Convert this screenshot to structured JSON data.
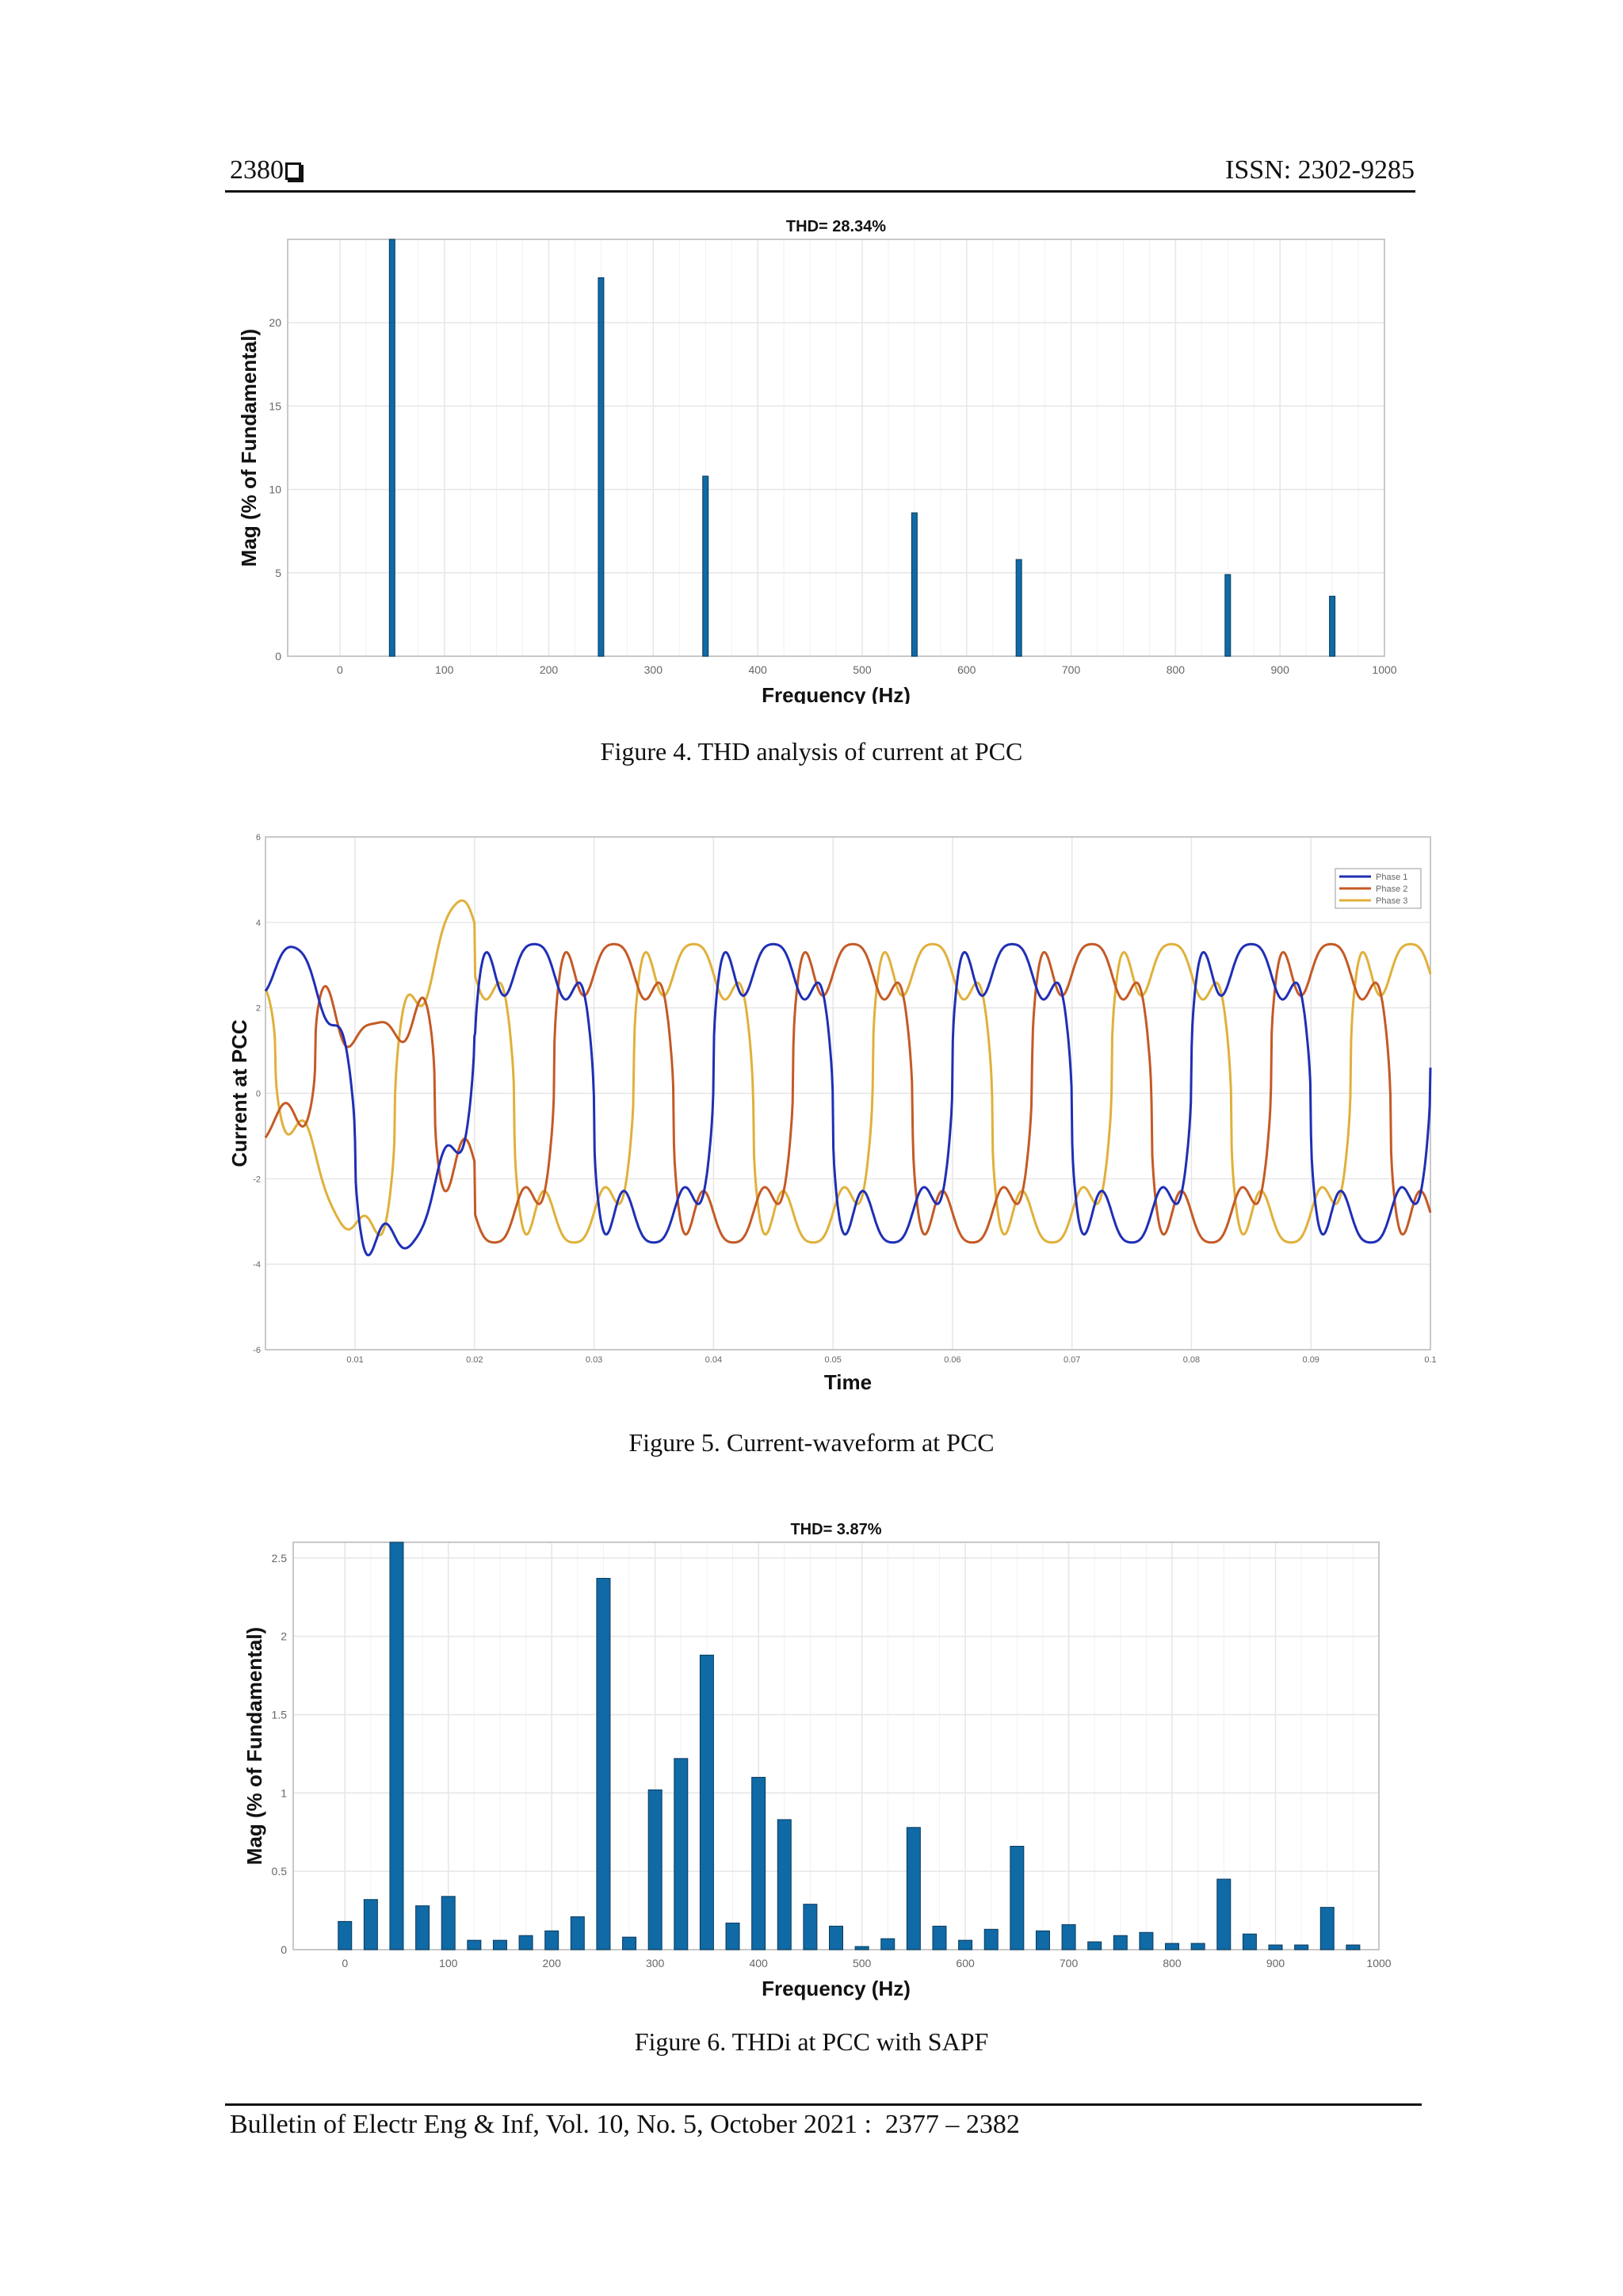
{
  "header": {
    "page_number": "2380",
    "issn": "ISSN: 2302-9285"
  },
  "footer": {
    "citation": "Bulletin of Electr Eng & Inf, Vol. 10, No. 5, October 2021 :  2377 – 2382"
  },
  "colors": {
    "bar": "#0f6aa6",
    "grid": "#e6e6e6",
    "phase1": "#1f2fb5",
    "phase2": "#c45a25",
    "phase3": "#e0b03a"
  },
  "figures": [
    {
      "id": "fig4",
      "caption": "Figure 4. THD analysis of current at PCC"
    },
    {
      "id": "fig5",
      "caption": "Figure 5. Current-waveform at PCC"
    },
    {
      "id": "fig6",
      "caption": "Figure 6. THDi at PCC with SAPF"
    }
  ],
  "chart_data": [
    {
      "type": "bar",
      "title": "THD= 28.34%",
      "xlabel": "Frequency (Hz)",
      "ylabel": "Mag (% of Fundamental)",
      "xlim": [
        -50,
        1000
      ],
      "ylim": [
        0,
        25
      ],
      "xticks": [
        0,
        100,
        200,
        300,
        400,
        500,
        600,
        700,
        800,
        900,
        1000
      ],
      "yticks": [
        0,
        5,
        10,
        15,
        20
      ],
      "x": [
        50,
        250,
        350,
        550,
        650,
        850,
        950
      ],
      "values": [
        25,
        22.7,
        10.8,
        8.6,
        5.8,
        4.9,
        3.6
      ],
      "grid": true
    },
    {
      "type": "line",
      "xlabel": "Time",
      "ylabel": "Current at PCC",
      "xlim": [
        0.0025,
        0.1
      ],
      "ylim": [
        -6,
        6
      ],
      "xticks": [
        0.01,
        0.02,
        0.03,
        0.04,
        0.05,
        0.06,
        0.07,
        0.08,
        0.09,
        0.1
      ],
      "yticks": [
        -6,
        -4,
        -2,
        0,
        2,
        4,
        6
      ],
      "legend_position": "top-right",
      "series": [
        {
          "name": "Phase 1"
        },
        {
          "name": "Phase 2"
        },
        {
          "name": "Phase 3"
        }
      ],
      "grid": true
    },
    {
      "type": "bar",
      "title": "THD= 3.87%",
      "xlabel": "Frequency (Hz)",
      "ylabel": "Mag (% of Fundamental)",
      "xlim": [
        -50,
        1000
      ],
      "ylim": [
        0,
        2.6
      ],
      "xticks": [
        0,
        100,
        200,
        300,
        400,
        500,
        600,
        700,
        800,
        900,
        1000
      ],
      "yticks": [
        0,
        0.5,
        1,
        1.5,
        2,
        2.5
      ],
      "x": [
        0,
        25,
        50,
        75,
        100,
        125,
        150,
        175,
        200,
        225,
        250,
        275,
        300,
        325,
        350,
        375,
        400,
        425,
        450,
        475,
        500,
        525,
        550,
        575,
        600,
        625,
        650,
        675,
        700,
        725,
        750,
        775,
        800,
        825,
        850,
        875,
        900,
        925,
        950,
        975
      ],
      "values": [
        0.18,
        0.32,
        2.6,
        0.28,
        0.34,
        0.06,
        0.06,
        0.09,
        0.12,
        0.21,
        2.37,
        0.08,
        1.02,
        1.22,
        1.88,
        0.17,
        1.1,
        0.83,
        0.29,
        0.15,
        0.02,
        0.07,
        0.78,
        0.15,
        0.06,
        0.13,
        0.66,
        0.12,
        0.16,
        0.05,
        0.09,
        0.11,
        0.04,
        0.04,
        0.45,
        0.1,
        0.03,
        0.03,
        0.27,
        0.03
      ],
      "grid": true
    }
  ]
}
